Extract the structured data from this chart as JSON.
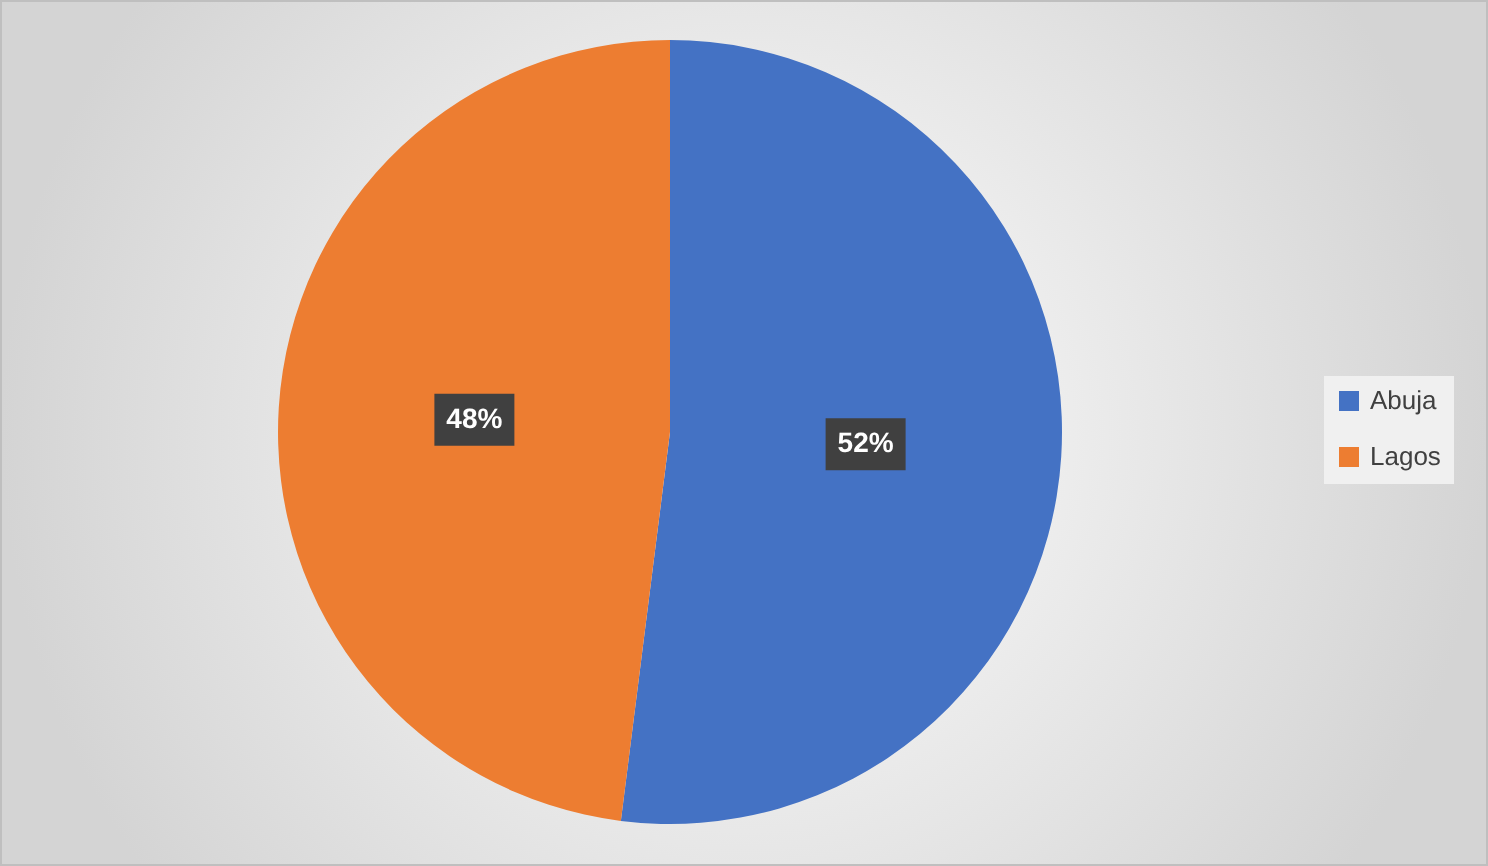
{
  "chart_data": {
    "type": "pie",
    "categories": [
      "Abuja",
      "Lagos"
    ],
    "values": [
      52,
      48
    ],
    "colors": [
      "#4472c4",
      "#ed7d31"
    ],
    "value_labels": [
      "52%",
      "48%"
    ],
    "legend": "right"
  }
}
